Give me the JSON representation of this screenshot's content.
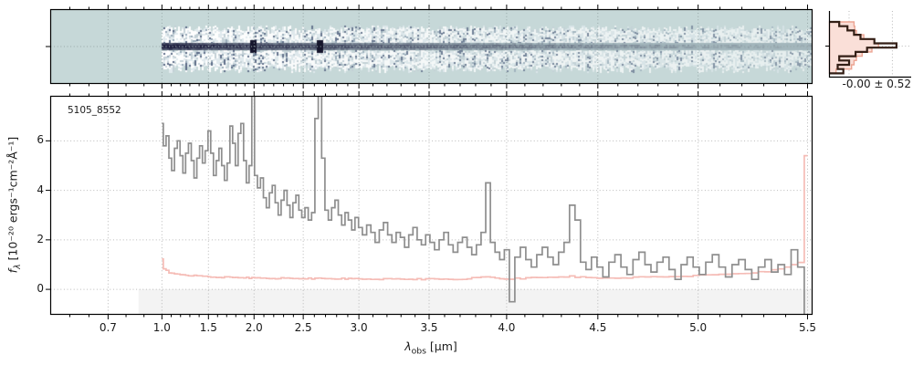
{
  "labels": {
    "source_id": "5105_8552",
    "hist_value": "-0.00 ± 0.52",
    "x_label": {
      "symbol": "λ",
      "sub": "obs",
      "units": " [μm]"
    },
    "y_label": {
      "symbol": "f",
      "sub": "λ",
      "units": " [10⁻²⁰ ergs⁻¹cm⁻²Å⁻¹]"
    }
  },
  "colors": {
    "bg": "#ffffff",
    "bg_2d": "#c6d8d8",
    "trace_dark": "#202040",
    "trace_faint": "#a3b6bc",
    "flux_line": "#8e8e8e",
    "error_line": "#f5bcb6",
    "hist_dark": "#331e15",
    "hist_fill": "#fadfd8",
    "hist_edge": "#eca593",
    "grid_main": "#b8b8b8",
    "grid_2d": "#97a7a7",
    "below_zero_band": "#f3f3f3",
    "spine": "#000000",
    "text": "#1a1a1a"
  },
  "chart_data": {
    "type": "line",
    "title": "5105_8552",
    "xlabel": "lambda_obs [micron]",
    "ylabel": "f_lambda [1e-20 ergs^-1 cm^-2 Angstrom^-1]",
    "xlim": [
      0.4,
      5.53
    ],
    "ylim": [
      -1.01,
      7.8
    ],
    "x_ticks": [
      0.7,
      1.0,
      1.5,
      2.0,
      2.5,
      3.0,
      3.5,
      4.0,
      4.5,
      5.0,
      5.5
    ],
    "x_minor_from": 0.5,
    "x_minor_to": 5.5,
    "x_minor_step": 0.1,
    "y_ticks": [
      0,
      2,
      4,
      6
    ],
    "grid": true,
    "x_scale_anchors": [
      [
        0.4,
        0.0
      ],
      [
        0.7,
        0.0754
      ],
      [
        1.0,
        0.1461
      ],
      [
        1.5,
        0.2072
      ],
      [
        2.0,
        0.2671
      ],
      [
        2.5,
        0.3317
      ],
      [
        3.0,
        0.4048
      ],
      [
        3.5,
        0.497
      ],
      [
        4.0,
        0.5988
      ],
      [
        4.5,
        0.7186
      ],
      [
        5.0,
        0.8503
      ],
      [
        5.5,
        0.994
      ],
      [
        5.6,
        1.02
      ]
    ],
    "band_start_wave": 0.87,
    "wl_start": 1.0,
    "wl_step": 0.03,
    "flux": [
      6.7,
      5.8,
      6.2,
      5.3,
      4.8,
      5.7,
      6.0,
      5.4,
      4.7,
      5.5,
      5.9,
      5.2,
      4.5,
      5.3,
      5.8,
      5.1,
      5.6,
      6.4,
      5.5,
      4.6,
      5.2,
      5.7,
      5.0,
      4.4,
      5.1,
      6.6,
      5.9,
      5.0,
      6.3,
      6.7,
      5.2,
      4.3,
      5.0,
      9.2,
      4.6,
      4.1,
      4.5,
      3.7,
      3.3,
      3.9,
      4.2,
      3.5,
      3.0,
      3.6,
      4.0,
      3.4,
      2.9,
      3.5,
      3.8,
      3.2,
      2.9,
      3.3,
      2.8,
      3.1,
      6.9,
      9.6,
      5.3,
      3.2,
      2.8,
      3.3,
      3.6,
      3.0,
      2.6,
      3.1,
      2.8,
      2.4,
      2.9,
      2.5,
      2.2,
      2.6,
      2.3,
      1.9,
      2.4,
      2.7,
      2.2,
      1.9,
      2.3,
      2.1,
      1.7,
      2.2,
      2.5,
      2.0,
      1.8,
      2.2,
      1.9,
      1.6,
      2.0,
      2.3,
      1.8,
      1.5,
      1.9,
      2.1,
      1.7,
      1.4,
      1.8,
      2.3,
      4.3,
      1.9,
      1.5,
      1.2,
      1.6,
      -0.5,
      1.3,
      1.7,
      1.2,
      0.9,
      1.4,
      1.7,
      1.3,
      1.0,
      1.5,
      1.9,
      3.4,
      2.8,
      1.1,
      0.8,
      1.3,
      0.9,
      0.5,
      1.1,
      1.4,
      0.9,
      0.6,
      1.2,
      1.5,
      1.0,
      0.7,
      1.1,
      1.3,
      0.8,
      0.4,
      1.0,
      1.3,
      0.9,
      0.6,
      1.1,
      1.4,
      0.9,
      0.5,
      1.0,
      1.2,
      0.8,
      0.4,
      0.9,
      1.2,
      0.7,
      1.0,
      0.6,
      1.6,
      0.9,
      -1.8
    ],
    "error_points": [
      [
        1.0,
        1.25
      ],
      [
        1.03,
        0.85
      ],
      [
        1.07,
        0.72
      ],
      [
        1.12,
        0.64
      ],
      [
        1.2,
        0.6
      ],
      [
        1.35,
        0.55
      ],
      [
        1.55,
        0.5
      ],
      [
        1.8,
        0.48
      ],
      [
        2.1,
        0.45
      ],
      [
        2.5,
        0.44
      ],
      [
        2.9,
        0.43
      ],
      [
        3.3,
        0.41
      ],
      [
        3.7,
        0.41
      ],
      [
        3.88,
        0.5
      ],
      [
        4.0,
        0.42
      ],
      [
        4.36,
        0.52
      ],
      [
        4.5,
        0.45
      ],
      [
        4.8,
        0.5
      ],
      [
        5.0,
        0.55
      ],
      [
        5.15,
        0.62
      ],
      [
        5.3,
        0.7
      ],
      [
        5.4,
        0.85
      ],
      [
        5.44,
        1.0
      ],
      [
        5.47,
        1.1
      ],
      [
        5.49,
        5.4
      ],
      [
        5.5,
        5.4
      ]
    ],
    "emission_line_waves": [
      1.99,
      2.65
    ],
    "twod": {
      "trace_start_wave": 1.0
    },
    "histogram": {
      "label": "-0.00 ± 0.52",
      "bin_top": 24,
      "bin_height": 4.7,
      "dark": [
        0.12,
        0.22,
        0.3,
        0.38,
        0.55,
        0.82,
        0.46,
        0.32,
        0.12,
        0.24,
        0.1,
        0.17
      ],
      "reference": [
        0.3,
        0.31,
        0.33,
        0.42,
        0.55,
        0.6,
        0.52,
        0.4,
        0.33,
        0.3,
        0.27,
        0.08
      ],
      "grid_x_fracs": [
        0.24,
        0.77
      ]
    }
  }
}
